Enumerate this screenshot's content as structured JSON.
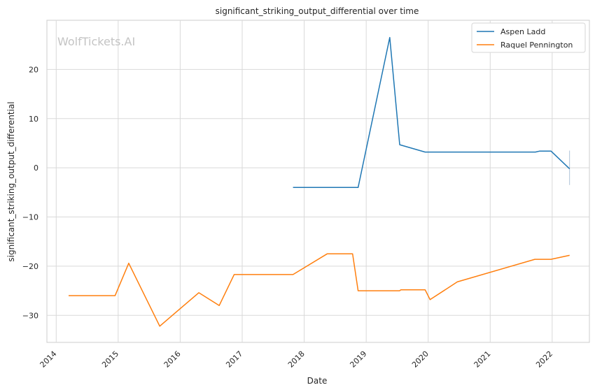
{
  "chart_data": {
    "type": "line",
    "title": "significant_striking_output_differential over time",
    "xlabel": "Date",
    "ylabel": "significant_striking_output_differential",
    "watermark": "WolfTickets.AI",
    "xlim": [
      2013.85,
      2022.6
    ],
    "ylim": [
      -35.5,
      30
    ],
    "x_ticks": [
      2014,
      2015,
      2016,
      2017,
      2018,
      2019,
      2020,
      2021,
      2022
    ],
    "x_tick_labels": [
      "2014",
      "2015",
      "2016",
      "2017",
      "2018",
      "2019",
      "2020",
      "2021",
      "2022"
    ],
    "y_ticks": [
      20,
      10,
      0,
      -10,
      -20,
      -30
    ],
    "y_tick_labels": [
      "20",
      "10",
      "0",
      "−10",
      "−20",
      "−30"
    ],
    "grid": true,
    "legend_position": "top-right",
    "colors": {
      "Aspen Ladd": "#1f77b4",
      "Raquel Pennington": "#ff7f0e"
    },
    "series": [
      {
        "name": "Aspen Ladd",
        "color": "#1f77b4",
        "x": [
          2017.82,
          2018.87,
          2019.38,
          2019.54,
          2019.95,
          2021.73,
          2021.8,
          2021.98,
          2022.28
        ],
        "y": [
          -4,
          -4,
          26.5,
          4.7,
          3.2,
          3.2,
          3.4,
          3.4,
          -0.2
        ]
      },
      {
        "name": "Raquel Pennington",
        "color": "#ff7f0e",
        "x": [
          2014.2,
          2014.95,
          2015.17,
          2015.67,
          2016.3,
          2016.63,
          2016.87,
          2017.82,
          2018.37,
          2018.78,
          2018.87,
          2019.54,
          2019.56,
          2019.95,
          2020.03,
          2020.47,
          2021.72,
          2021.98,
          2022.28
        ],
        "y": [
          -26,
          -26,
          -19.4,
          -32.2,
          -25.4,
          -28,
          -21.7,
          -21.7,
          -17.5,
          -17.5,
          -25,
          -25,
          -24.8,
          -24.8,
          -26.8,
          -23.2,
          -18.6,
          -18.6,
          -17.8
        ]
      }
    ],
    "annotations": [
      {
        "type": "error_bar",
        "x": 2022.28,
        "y_low": -3.5,
        "y_high": 3.5,
        "color": "#b0c4d8"
      }
    ]
  }
}
